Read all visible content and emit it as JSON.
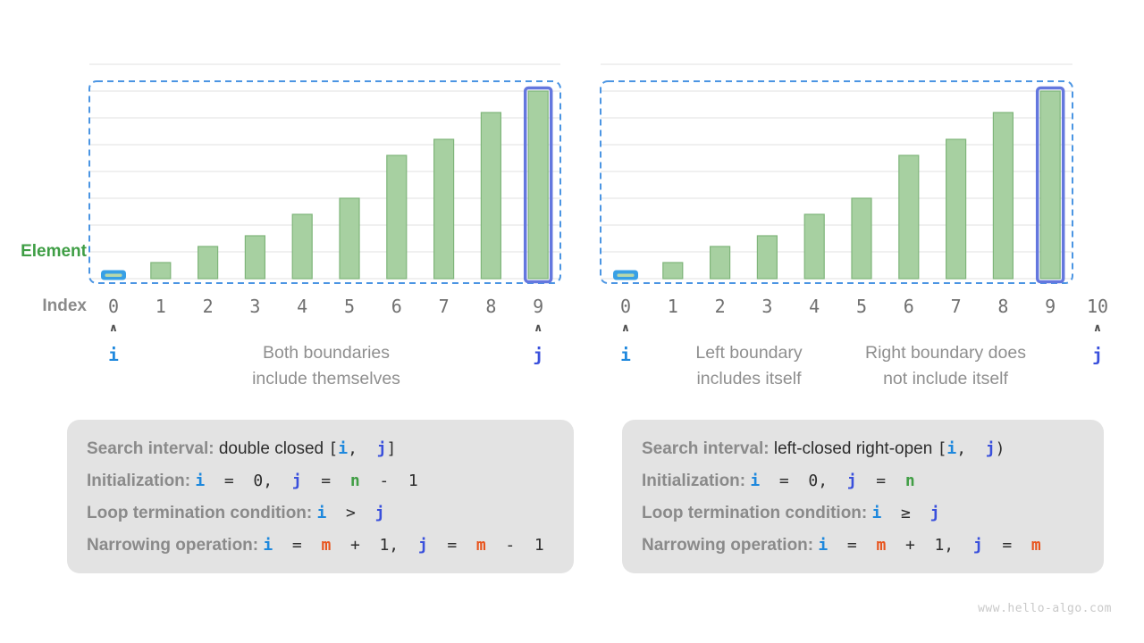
{
  "labels": {
    "element": "Element",
    "index": "Index"
  },
  "watermark": "www.hello-algo.com",
  "colors": {
    "i": "#1e88dd",
    "j": "#3a50dc",
    "m": "#e8541d",
    "n": "#419e45",
    "element_label": "#3f9e45",
    "index_label": "#8a8a8a",
    "bar_fill": "#a7d0a1",
    "bar_stroke": "#7fb57a",
    "first_element_highlight": "#38a0e5",
    "first_element_inner": "#b7d8ab",
    "last_element_ring": "#6477de",
    "range_dash_border": "#4b95e3",
    "grid": "#e8e8e8",
    "caption_text": "#8f8f8f",
    "index_digits": "#707070",
    "arrow": "#4f4f4f",
    "box_background": "#e3e3e3",
    "code_dark": "#2d2d2d",
    "watermark_gray": "#c9c9c9"
  },
  "chart_data": [
    {
      "type": "bar",
      "categories": [
        "0",
        "1",
        "2",
        "3",
        "4",
        "5",
        "6",
        "7",
        "8",
        "9"
      ],
      "values": [
        1,
        3,
        6,
        8,
        12,
        15,
        23,
        26,
        31,
        35
      ],
      "ylim": [
        0,
        40
      ],
      "grid_step": 5,
      "xlabel": "Index",
      "ylabel": "Element",
      "i_index": 0,
      "j_index": 9,
      "first_highlight_index": 0,
      "ring_highlight_index": 9,
      "i_label": "i",
      "j_label": "j",
      "captions": [
        [
          "Both boundaries",
          "include themselves"
        ]
      ]
    },
    {
      "type": "bar",
      "categories": [
        "0",
        "1",
        "2",
        "3",
        "4",
        "5",
        "6",
        "7",
        "8",
        "9",
        "10"
      ],
      "values": [
        1,
        3,
        6,
        8,
        12,
        15,
        23,
        26,
        31,
        35
      ],
      "ylim": [
        0,
        40
      ],
      "grid_step": 5,
      "xlabel": "Index",
      "ylabel": "Element",
      "i_index": 0,
      "j_index": 10,
      "first_highlight_index": 0,
      "ring_highlight_index": 9,
      "i_label": "i",
      "j_label": "j",
      "captions": [
        [
          "Left boundary",
          "includes itself"
        ],
        [
          "Right boundary does",
          "not include itself"
        ]
      ]
    }
  ],
  "info_boxes": [
    {
      "lines": [
        [
          {
            "s": "label",
            "t": "Search interval:"
          },
          {
            "s": "plain",
            "t": " double closed "
          },
          {
            "s": "code",
            "t": "["
          },
          {
            "s": "i",
            "t": "i"
          },
          {
            "s": "code",
            "t": ",  "
          },
          {
            "s": "j",
            "t": "j"
          },
          {
            "s": "code",
            "t": "]"
          }
        ],
        [
          {
            "s": "label",
            "t": "Initialization:"
          },
          {
            "s": "plain",
            "t": " "
          },
          {
            "s": "i",
            "t": "i"
          },
          {
            "s": "code",
            "t": "  =  0,  "
          },
          {
            "s": "j",
            "t": "j"
          },
          {
            "s": "code",
            "t": "  =  "
          },
          {
            "s": "n",
            "t": "n"
          },
          {
            "s": "code",
            "t": "  -  1"
          }
        ],
        [
          {
            "s": "label",
            "t": "Loop termination condition:"
          },
          {
            "s": "plain",
            "t": " "
          },
          {
            "s": "i",
            "t": "i"
          },
          {
            "s": "code",
            "t": "  >  "
          },
          {
            "s": "j",
            "t": "j"
          }
        ],
        [
          {
            "s": "label",
            "t": "Narrowing operation:"
          },
          {
            "s": "plain",
            "t": " "
          },
          {
            "s": "i",
            "t": "i"
          },
          {
            "s": "code",
            "t": "  =  "
          },
          {
            "s": "m",
            "t": "m"
          },
          {
            "s": "code",
            "t": "  +  1,  "
          },
          {
            "s": "j",
            "t": "j"
          },
          {
            "s": "code",
            "t": "  =  "
          },
          {
            "s": "m",
            "t": "m"
          },
          {
            "s": "code",
            "t": "  -  1"
          }
        ]
      ]
    },
    {
      "lines": [
        [
          {
            "s": "label",
            "t": "Search interval:"
          },
          {
            "s": "plain",
            "t": " left-closed right-open "
          },
          {
            "s": "code",
            "t": "["
          },
          {
            "s": "i",
            "t": "i"
          },
          {
            "s": "code",
            "t": ",  "
          },
          {
            "s": "j",
            "t": "j"
          },
          {
            "s": "code",
            "t": ")"
          }
        ],
        [
          {
            "s": "label",
            "t": "Initialization:"
          },
          {
            "s": "plain",
            "t": " "
          },
          {
            "s": "i",
            "t": "i"
          },
          {
            "s": "code",
            "t": "  =  0,  "
          },
          {
            "s": "j",
            "t": "j"
          },
          {
            "s": "code",
            "t": "  =  "
          },
          {
            "s": "n",
            "t": "n"
          }
        ],
        [
          {
            "s": "label",
            "t": "Loop termination condition:"
          },
          {
            "s": "plain",
            "t": " "
          },
          {
            "s": "i",
            "t": "i"
          },
          {
            "s": "code",
            "t": "  ≥  "
          },
          {
            "s": "j",
            "t": "j"
          }
        ],
        [
          {
            "s": "label",
            "t": "Narrowing operation:"
          },
          {
            "s": "plain",
            "t": " "
          },
          {
            "s": "i",
            "t": "i"
          },
          {
            "s": "code",
            "t": "  =  "
          },
          {
            "s": "m",
            "t": "m"
          },
          {
            "s": "code",
            "t": "  +  1,  "
          },
          {
            "s": "j",
            "t": "j"
          },
          {
            "s": "code",
            "t": "  =  "
          },
          {
            "s": "m",
            "t": "m"
          }
        ]
      ]
    }
  ]
}
